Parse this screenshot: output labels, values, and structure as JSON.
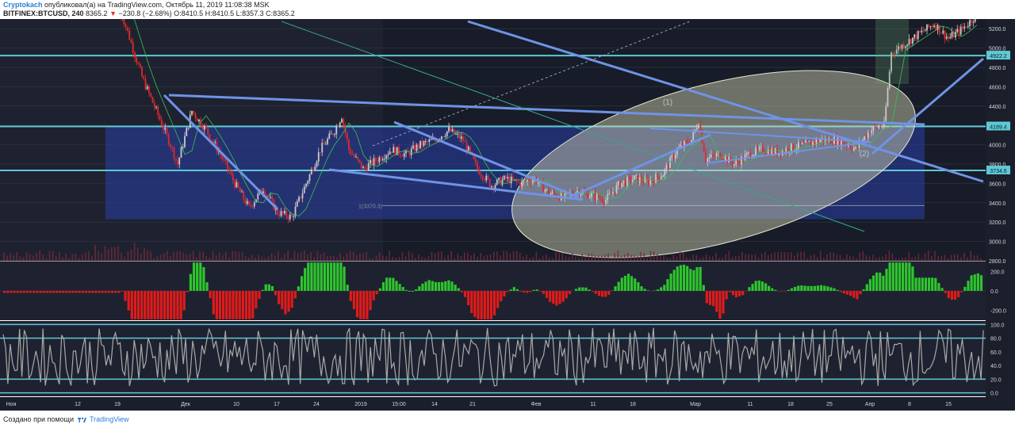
{
  "header": {
    "author": "Cryptokach",
    "published_text": "опубликовал(а) на TradingView.com, Октябрь 11, 2019 11:08:38 MSK",
    "symbol": "BITFINEX:BTCUSD, 240",
    "last_price": "8365.2",
    "change_arrow": "▼",
    "change": "−230.8 (−2.68%)",
    "ohlc": "O:8410.5 H:8410.5 L:8357.3 C:8365.2"
  },
  "footer": {
    "created_with": "Создано при помощи",
    "brand": "TradingView"
  },
  "chart_data": {
    "type": "candlestick",
    "symbol": "BITFINEX:BTCUSD",
    "timeframe": "240",
    "price_ylim": [
      2800,
      5300
    ],
    "price_ticks": [
      "5200.0",
      "5000.0",
      "4800.0",
      "4600.0",
      "4400.0",
      "4200.0",
      "4000.0",
      "3800.0",
      "3600.0",
      "3400.0",
      "3200.0",
      "3000.0",
      "2800.0"
    ],
    "price_tick_values": [
      5200,
      5000,
      4800,
      4600,
      4400,
      4200,
      4000,
      3800,
      3600,
      3400,
      3200,
      3000,
      2800
    ],
    "horizontal_levels": [
      {
        "label": "4922.2",
        "value": 4922.2
      },
      {
        "label": "4189.4",
        "value": 4189.4
      },
      {
        "label": "3734.6",
        "value": 3734.6
      }
    ],
    "support_marker": {
      "label": "1(3370.3)",
      "value": 3370.3
    },
    "wave_labels": [
      "(1)",
      "(2)"
    ],
    "x_ticks": [
      "Ноя",
      "12",
      "19",
      "Дек",
      "10",
      "17",
      "24",
      "2019",
      "15:00",
      "14",
      "21",
      "Фев",
      "11",
      "18",
      "Мар",
      "11",
      "18",
      "25",
      "Апр",
      "8",
      "15"
    ],
    "price_path": [
      {
        "i": 0,
        "v": 5400
      },
      {
        "i": 3,
        "v": 4700
      },
      {
        "i": 5,
        "v": 4350
      },
      {
        "i": 7,
        "v": 4000
      },
      {
        "i": 8,
        "v": 3800
      },
      {
        "i": 10,
        "v": 4350
      },
      {
        "i": 12,
        "v": 4150
      },
      {
        "i": 14,
        "v": 3900
      },
      {
        "i": 16,
        "v": 3600
      },
      {
        "i": 18,
        "v": 3350
      },
      {
        "i": 20,
        "v": 3550
      },
      {
        "i": 22,
        "v": 3300
      },
      {
        "i": 24,
        "v": 3250
      },
      {
        "i": 26,
        "v": 3600
      },
      {
        "i": 28,
        "v": 3950
      },
      {
        "i": 30,
        "v": 4150
      },
      {
        "i": 31,
        "v": 4300
      },
      {
        "i": 32,
        "v": 3950
      },
      {
        "i": 34,
        "v": 3750
      },
      {
        "i": 36,
        "v": 3850
      },
      {
        "i": 38,
        "v": 3950
      },
      {
        "i": 40,
        "v": 3900
      },
      {
        "i": 42,
        "v": 4000
      },
      {
        "i": 44,
        "v": 4050
      },
      {
        "i": 46,
        "v": 4150
      },
      {
        "i": 48,
        "v": 4050
      },
      {
        "i": 50,
        "v": 3750
      },
      {
        "i": 52,
        "v": 3580
      },
      {
        "i": 54,
        "v": 3650
      },
      {
        "i": 56,
        "v": 3600
      },
      {
        "i": 58,
        "v": 3650
      },
      {
        "i": 60,
        "v": 3500
      },
      {
        "i": 62,
        "v": 3460
      },
      {
        "i": 64,
        "v": 3520
      },
      {
        "i": 66,
        "v": 3480
      },
      {
        "i": 68,
        "v": 3430
      },
      {
        "i": 70,
        "v": 3600
      },
      {
        "i": 72,
        "v": 3650
      },
      {
        "i": 74,
        "v": 3620
      },
      {
        "i": 76,
        "v": 3700
      },
      {
        "i": 78,
        "v": 3950
      },
      {
        "i": 80,
        "v": 4050
      },
      {
        "i": 81,
        "v": 4250
      },
      {
        "i": 82,
        "v": 3850
      },
      {
        "i": 84,
        "v": 3900
      },
      {
        "i": 86,
        "v": 3800
      },
      {
        "i": 88,
        "v": 3900
      },
      {
        "i": 90,
        "v": 3950
      },
      {
        "i": 92,
        "v": 3920
      },
      {
        "i": 94,
        "v": 3970
      },
      {
        "i": 96,
        "v": 4000
      },
      {
        "i": 98,
        "v": 4050
      },
      {
        "i": 100,
        "v": 4050
      },
      {
        "i": 102,
        "v": 4000
      },
      {
        "i": 103,
        "v": 3950
      },
      {
        "i": 105,
        "v": 4150
      },
      {
        "i": 107,
        "v": 4200
      },
      {
        "i": 108,
        "v": 4950
      },
      {
        "i": 110,
        "v": 5050
      },
      {
        "i": 112,
        "v": 5150
      },
      {
        "i": 114,
        "v": 5250
      },
      {
        "i": 116,
        "v": 5100
      },
      {
        "i": 118,
        "v": 5200
      },
      {
        "i": 120,
        "v": 5350
      }
    ],
    "momentum_ticks": [
      "200.0",
      "0.0",
      "-200.0"
    ],
    "momentum_tick_values": [
      200,
      0,
      -200
    ],
    "momentum_ylim": [
      -300,
      300
    ],
    "oscillator_ticks": [
      "100.0",
      "80.0",
      "60.0",
      "40.0",
      "20.0",
      "0.0"
    ],
    "oscillator_tick_values": [
      100,
      80,
      60,
      40,
      20,
      0
    ],
    "oscillator_ylim": [
      -5,
      105
    ],
    "oscillator_levels": [
      100,
      80,
      20,
      0
    ]
  },
  "colors": {
    "background": "#1e2230",
    "background_right": "#131722",
    "grid": "#2a2e3b",
    "level_line": "#5fc9d5",
    "zone_fill": "#2a3fa8",
    "trend_line": "#6f93e6",
    "candle_up": "#c9c9c9",
    "candle_down": "#e02a2a",
    "ellipse_fill": "#d8d9b4",
    "mom_up": "#2ec52e",
    "mom_down": "#e01b1b",
    "osc_line": "#a9a9a9",
    "axis_text": "#d0d4dc"
  }
}
